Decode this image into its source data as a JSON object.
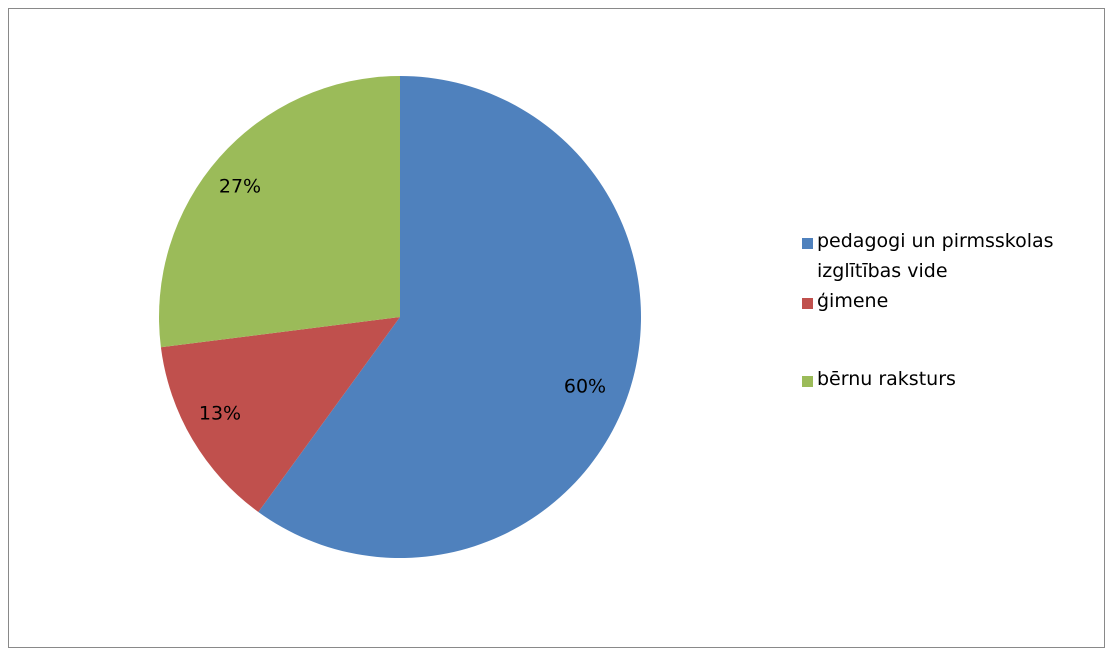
{
  "chart_data": {
    "type": "pie",
    "title": "",
    "categories": [
      "pedagogi un pirmsskolas izglītības vide",
      "ģimene",
      "bērnu raksturs"
    ],
    "values": [
      60,
      13,
      27
    ],
    "data_labels": [
      "60%",
      "13%",
      "27%"
    ],
    "colors": [
      "#4F81BD",
      "#C0504D",
      "#9BBB59"
    ],
    "legend_position": "right"
  },
  "legend": {
    "items": [
      {
        "lines": [
          "pedagogi un pirmsskolas",
          "izglītības vide"
        ],
        "color": "#4F81BD"
      },
      {
        "lines": [
          "ģimene"
        ],
        "color": "#C0504D"
      },
      {
        "lines": [
          "bērnu raksturs"
        ],
        "color": "#9BBB59"
      }
    ]
  }
}
